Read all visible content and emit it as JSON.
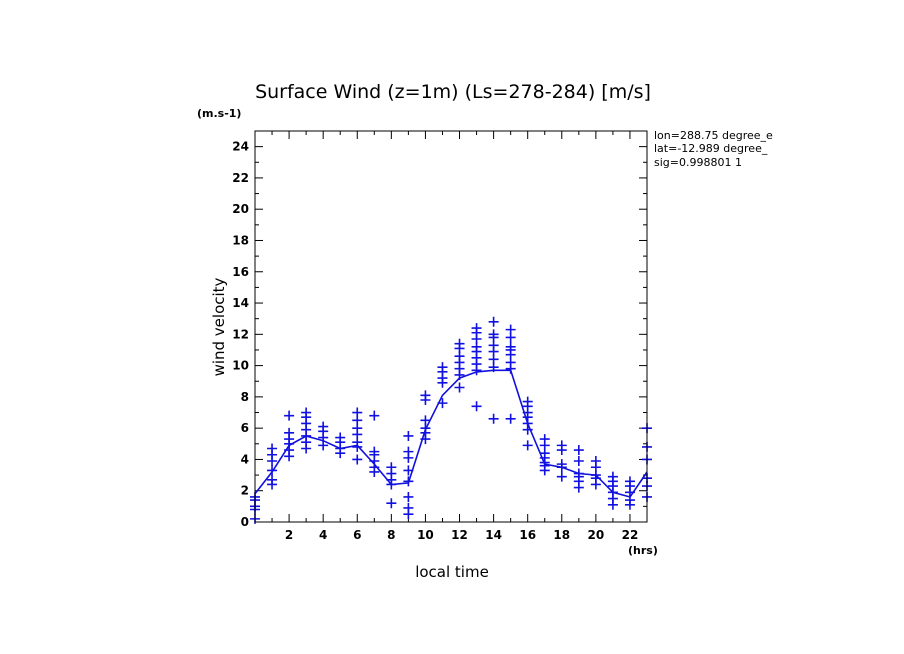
{
  "chart_data": {
    "type": "scatter",
    "title": "Surface Wind (z=1m) (Ls=278-284) [m/s]",
    "ylabel": "wind velocity",
    "yunit": "(m.s-1)",
    "xlabel": "local time",
    "xunit": "(hrs)",
    "info": [
      "lon=288.75 degree_e",
      "lat=-12.989 degree_",
      "sig=0.998801 1"
    ],
    "xlim": [
      0,
      23
    ],
    "ylim": [
      0,
      25
    ],
    "x_ticks": [
      2,
      4,
      6,
      8,
      10,
      12,
      14,
      16,
      18,
      20,
      22
    ],
    "y_ticks": [
      0,
      2,
      4,
      6,
      8,
      10,
      12,
      14,
      16,
      18,
      20,
      22,
      24
    ],
    "color": "#1010e0",
    "series": [
      {
        "marker": "plus",
        "points": [
          [
            0,
            0.2
          ],
          [
            0,
            0.8
          ],
          [
            0,
            1.0
          ],
          [
            0,
            1.4
          ],
          [
            0,
            1.6
          ],
          [
            1,
            2.4
          ],
          [
            1,
            2.7
          ],
          [
            1,
            3.3
          ],
          [
            1,
            3.9
          ],
          [
            1,
            4.3
          ],
          [
            1,
            4.7
          ],
          [
            2,
            4.2
          ],
          [
            2,
            4.6
          ],
          [
            2,
            5.0
          ],
          [
            2,
            5.3
          ],
          [
            2,
            5.7
          ],
          [
            2,
            6.8
          ],
          [
            3,
            4.7
          ],
          [
            3,
            5.1
          ],
          [
            3,
            5.5
          ],
          [
            3,
            5.9
          ],
          [
            3,
            6.3
          ],
          [
            3,
            6.7
          ],
          [
            3,
            7.0
          ],
          [
            4,
            4.9
          ],
          [
            4,
            5.4
          ],
          [
            4,
            5.8
          ],
          [
            4,
            6.1
          ],
          [
            5,
            4.4
          ],
          [
            5,
            4.7
          ],
          [
            5,
            5.1
          ],
          [
            5,
            5.4
          ],
          [
            6,
            4.0
          ],
          [
            6,
            4.8
          ],
          [
            6,
            5.1
          ],
          [
            6,
            5.6
          ],
          [
            6,
            6.0
          ],
          [
            6,
            6.5
          ],
          [
            6,
            7.0
          ],
          [
            7,
            3.2
          ],
          [
            7,
            3.5
          ],
          [
            7,
            3.9
          ],
          [
            7,
            4.3
          ],
          [
            7,
            4.5
          ],
          [
            7,
            6.8
          ],
          [
            8,
            1.2
          ],
          [
            8,
            2.4
          ],
          [
            8,
            2.7
          ],
          [
            8,
            3.1
          ],
          [
            8,
            3.5
          ],
          [
            9,
            0.5
          ],
          [
            9,
            0.9
          ],
          [
            9,
            1.6
          ],
          [
            9,
            2.6
          ],
          [
            9,
            3.3
          ],
          [
            9,
            4.1
          ],
          [
            9,
            4.5
          ],
          [
            9,
            5.5
          ],
          [
            10,
            5.3
          ],
          [
            10,
            5.7
          ],
          [
            10,
            6.0
          ],
          [
            10,
            6.5
          ],
          [
            10,
            7.8
          ],
          [
            10,
            8.1
          ],
          [
            11,
            7.6
          ],
          [
            11,
            8.9
          ],
          [
            11,
            9.2
          ],
          [
            11,
            9.6
          ],
          [
            11,
            9.9
          ],
          [
            12,
            8.6
          ],
          [
            12,
            9.4
          ],
          [
            12,
            9.8
          ],
          [
            12,
            10.2
          ],
          [
            12,
            10.6
          ],
          [
            12,
            11.1
          ],
          [
            12,
            11.4
          ],
          [
            13,
            7.4
          ],
          [
            13,
            9.7
          ],
          [
            13,
            10.1
          ],
          [
            13,
            10.5
          ],
          [
            13,
            10.9
          ],
          [
            13,
            11.2
          ],
          [
            13,
            11.7
          ],
          [
            13,
            12.1
          ],
          [
            13,
            12.4
          ],
          [
            14,
            6.6
          ],
          [
            14,
            9.9
          ],
          [
            14,
            10.4
          ],
          [
            14,
            10.9
          ],
          [
            14,
            11.3
          ],
          [
            14,
            11.8
          ],
          [
            14,
            12.0
          ],
          [
            14,
            12.8
          ],
          [
            15,
            6.6
          ],
          [
            15,
            9.8
          ],
          [
            15,
            10.2
          ],
          [
            15,
            10.7
          ],
          [
            15,
            11.0
          ],
          [
            15,
            11.2
          ],
          [
            15,
            11.8
          ],
          [
            15,
            12.3
          ],
          [
            16,
            4.9
          ],
          [
            16,
            5.9
          ],
          [
            16,
            6.3
          ],
          [
            16,
            6.7
          ],
          [
            16,
            7.0
          ],
          [
            16,
            7.4
          ],
          [
            16,
            7.7
          ],
          [
            17,
            3.3
          ],
          [
            17,
            3.6
          ],
          [
            17,
            3.8
          ],
          [
            17,
            4.1
          ],
          [
            17,
            4.4
          ],
          [
            17,
            4.9
          ],
          [
            17,
            5.3
          ],
          [
            18,
            2.9
          ],
          [
            18,
            3.5
          ],
          [
            18,
            3.7
          ],
          [
            18,
            4.6
          ],
          [
            18,
            4.9
          ],
          [
            19,
            2.2
          ],
          [
            19,
            2.6
          ],
          [
            19,
            2.9
          ],
          [
            19,
            3.1
          ],
          [
            19,
            3.9
          ],
          [
            19,
            4.6
          ],
          [
            20,
            2.4
          ],
          [
            20,
            2.8
          ],
          [
            20,
            3.0
          ],
          [
            20,
            3.5
          ],
          [
            20,
            3.9
          ],
          [
            21,
            1.1
          ],
          [
            21,
            1.5
          ],
          [
            21,
            1.9
          ],
          [
            21,
            2.3
          ],
          [
            21,
            2.6
          ],
          [
            21,
            2.9
          ],
          [
            22,
            1.1
          ],
          [
            22,
            1.4
          ],
          [
            22,
            1.9
          ],
          [
            22,
            2.3
          ],
          [
            22,
            2.6
          ],
          [
            23,
            1.6
          ],
          [
            23,
            2.3
          ],
          [
            23,
            2.8
          ],
          [
            23,
            4.0
          ],
          [
            23,
            4.8
          ],
          [
            23,
            6.0
          ]
        ]
      },
      {
        "marker": "line",
        "x": [
          0,
          1,
          2,
          3,
          4,
          5,
          6,
          7,
          8,
          9,
          10,
          11,
          12,
          13,
          14,
          15,
          16,
          17,
          18,
          19,
          20,
          21,
          22,
          23
        ],
        "values": [
          1.8,
          3.2,
          4.9,
          5.5,
          5.2,
          4.7,
          4.9,
          3.7,
          2.4,
          2.5,
          5.9,
          8.1,
          9.2,
          9.6,
          9.7,
          9.7,
          6.3,
          3.7,
          3.5,
          3.1,
          3.0,
          1.9,
          1.6,
          3.2
        ]
      }
    ]
  }
}
